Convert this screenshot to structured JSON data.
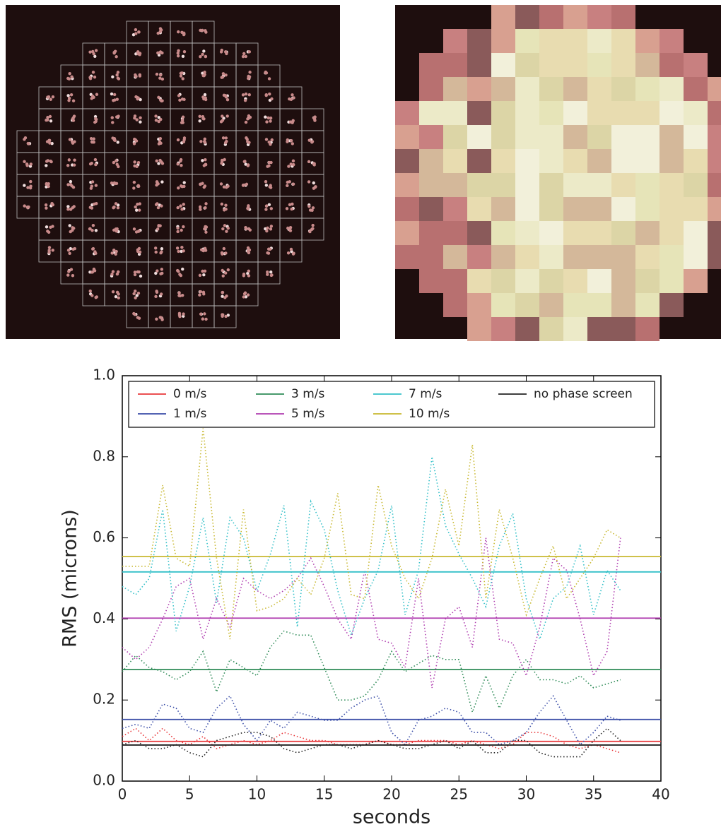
{
  "chart_data": {
    "type": "line",
    "xlabel": "seconds",
    "ylabel": "RMS (microns)",
    "xlim": [
      0,
      40
    ],
    "xticks": [
      0,
      5,
      10,
      15,
      20,
      25,
      30,
      35,
      40
    ],
    "ylim": [
      0,
      1
    ],
    "yticks": [
      {
        "value": 0,
        "label": "0.0"
      },
      0.2,
      0.4,
      0.6,
      0.8,
      {
        "value": 1,
        "label": "1.0"
      }
    ],
    "legend": "upper-left",
    "x": [
      0,
      1,
      2,
      3,
      4,
      5,
      6,
      7,
      8,
      9,
      10,
      11,
      12,
      13,
      14,
      15,
      16,
      17,
      18,
      19,
      20,
      21,
      22,
      23,
      24,
      25,
      26,
      27,
      28,
      29,
      30,
      31,
      32,
      33,
      34,
      35,
      36,
      37
    ],
    "series": [
      {
        "name": "0 m/s",
        "color": "#e8373a",
        "mean": 0.098,
        "values": [
          0.11,
          0.13,
          0.1,
          0.13,
          0.1,
          0.09,
          0.11,
          0.08,
          0.09,
          0.1,
          0.09,
          0.1,
          0.12,
          0.11,
          0.1,
          0.1,
          0.09,
          0.09,
          0.09,
          0.1,
          0.09,
          0.09,
          0.1,
          0.1,
          0.1,
          0.09,
          0.1,
          0.09,
          0.08,
          0.09,
          0.12,
          0.12,
          0.11,
          0.09,
          0.08,
          0.09,
          0.08,
          0.07
        ]
      },
      {
        "name": "1 m/s",
        "color": "#3b4ea8",
        "mean": 0.152,
        "values": [
          0.13,
          0.14,
          0.13,
          0.19,
          0.18,
          0.13,
          0.12,
          0.18,
          0.21,
          0.14,
          0.1,
          0.15,
          0.13,
          0.17,
          0.16,
          0.15,
          0.15,
          0.18,
          0.2,
          0.21,
          0.12,
          0.09,
          0.15,
          0.16,
          0.18,
          0.17,
          0.12,
          0.12,
          0.09,
          0.1,
          0.12,
          0.17,
          0.21,
          0.15,
          0.09,
          0.12,
          0.16,
          0.15
        ]
      },
      {
        "name": "3 m/s",
        "color": "#2e8b57",
        "mean": 0.275,
        "values": [
          0.27,
          0.31,
          0.28,
          0.27,
          0.25,
          0.27,
          0.32,
          0.22,
          0.3,
          0.28,
          0.26,
          0.33,
          0.37,
          0.36,
          0.36,
          0.28,
          0.2,
          0.2,
          0.21,
          0.25,
          0.32,
          0.27,
          0.29,
          0.31,
          0.3,
          0.3,
          0.17,
          0.26,
          0.18,
          0.26,
          0.3,
          0.25,
          0.25,
          0.24,
          0.26,
          0.23,
          0.24,
          0.25
        ]
      },
      {
        "name": "5 m/s",
        "color": "#b03fb0",
        "mean": 0.402,
        "values": [
          0.33,
          0.3,
          0.33,
          0.4,
          0.48,
          0.5,
          0.35,
          0.45,
          0.38,
          0.5,
          0.47,
          0.45,
          0.47,
          0.5,
          0.55,
          0.48,
          0.4,
          0.35,
          0.52,
          0.35,
          0.34,
          0.28,
          0.5,
          0.23,
          0.4,
          0.43,
          0.33,
          0.6,
          0.35,
          0.34,
          0.26,
          0.38,
          0.55,
          0.52,
          0.4,
          0.26,
          0.32,
          0.6
        ]
      },
      {
        "name": "7 m/s",
        "color": "#33c0c8",
        "mean": 0.516,
        "values": [
          0.48,
          0.46,
          0.5,
          0.67,
          0.37,
          0.48,
          0.65,
          0.44,
          0.65,
          0.6,
          0.47,
          0.56,
          0.68,
          0.38,
          0.69,
          0.62,
          0.47,
          0.36,
          0.45,
          0.52,
          0.68,
          0.41,
          0.52,
          0.8,
          0.63,
          0.56,
          0.5,
          0.43,
          0.58,
          0.66,
          0.45,
          0.35,
          0.45,
          0.48,
          0.58,
          0.41,
          0.52,
          0.47
        ]
      },
      {
        "name": "10 m/s",
        "color": "#c8b830",
        "mean": 0.554,
        "values": [
          0.53,
          0.53,
          0.53,
          0.73,
          0.55,
          0.53,
          0.87,
          0.55,
          0.35,
          0.67,
          0.42,
          0.43,
          0.45,
          0.5,
          0.46,
          0.55,
          0.71,
          0.46,
          0.45,
          0.73,
          0.58,
          0.5,
          0.45,
          0.55,
          0.72,
          0.58,
          0.83,
          0.45,
          0.67,
          0.55,
          0.41,
          0.5,
          0.58,
          0.45,
          0.5,
          0.55,
          0.62,
          0.6
        ]
      },
      {
        "name": "no phase screen",
        "color": "#222222",
        "mean": 0.089,
        "values": [
          0.09,
          0.1,
          0.08,
          0.08,
          0.09,
          0.07,
          0.06,
          0.1,
          0.11,
          0.12,
          0.12,
          0.11,
          0.08,
          0.07,
          0.08,
          0.09,
          0.09,
          0.08,
          0.09,
          0.1,
          0.09,
          0.08,
          0.08,
          0.09,
          0.1,
          0.08,
          0.1,
          0.07,
          0.07,
          0.1,
          0.1,
          0.07,
          0.06,
          0.06,
          0.06,
          0.1,
          0.13,
          0.1
        ]
      }
    ]
  }
}
